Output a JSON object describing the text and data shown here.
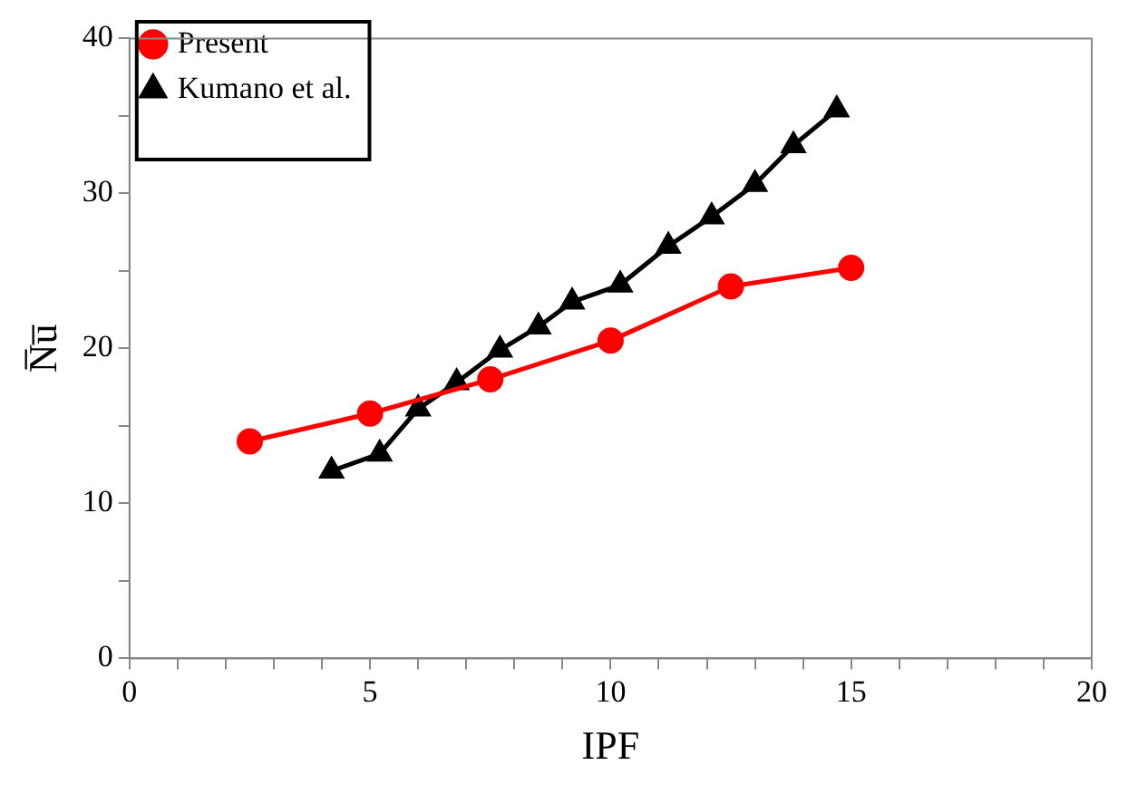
{
  "chart_data": {
    "type": "line",
    "xlabel": "IPF",
    "ylabel": "N̅u̅",
    "xlim": [
      0,
      20
    ],
    "xticks": [
      0,
      {
        "value": 1,
        "label": null
      },
      {
        "value": 2,
        "label": null
      },
      {
        "value": 3,
        "label": null
      },
      {
        "value": 4,
        "label": null
      },
      5,
      {
        "value": 6,
        "label": null
      },
      {
        "value": 7,
        "label": null
      },
      {
        "value": 8,
        "label": null
      },
      {
        "value": 9,
        "label": null
      },
      10,
      {
        "value": 11,
        "label": null
      },
      {
        "value": 12,
        "label": null
      },
      {
        "value": 13,
        "label": null
      },
      {
        "value": 14,
        "label": null
      },
      15,
      {
        "value": 16,
        "label": null
      },
      {
        "value": 17,
        "label": null
      },
      {
        "value": 18,
        "label": null
      },
      {
        "value": 19,
        "label": null
      },
      20
    ],
    "ylim": [
      0,
      40
    ],
    "yticks": [
      0,
      {
        "value": 5,
        "label": null
      },
      10,
      {
        "value": 15,
        "label": null
      },
      20,
      {
        "value": 25,
        "label": null
      },
      30,
      {
        "value": 35,
        "label": null
      },
      40
    ],
    "legend": "top left",
    "grid": false,
    "series": [
      {
        "name": "Present",
        "color": "#ff0000",
        "marker": "circle",
        "x": [
          2.5,
          5,
          7.5,
          10,
          12.5,
          15
        ],
        "values": [
          14.0,
          15.8,
          18.0,
          20.5,
          24.0,
          25.2
        ]
      },
      {
        "name": "Kumano et al.",
        "color": "#000000",
        "marker": "triangle",
        "x": [
          4.2,
          5.2,
          6.0,
          6.8,
          7.7,
          8.5,
          9.2,
          10.2,
          11.2,
          12.1,
          13.0,
          13.8,
          14.7
        ],
        "values": [
          12.1,
          13.2,
          16.1,
          17.8,
          19.9,
          21.4,
          23.0,
          24.1,
          26.6,
          28.5,
          30.6,
          33.1,
          35.4
        ]
      }
    ]
  }
}
